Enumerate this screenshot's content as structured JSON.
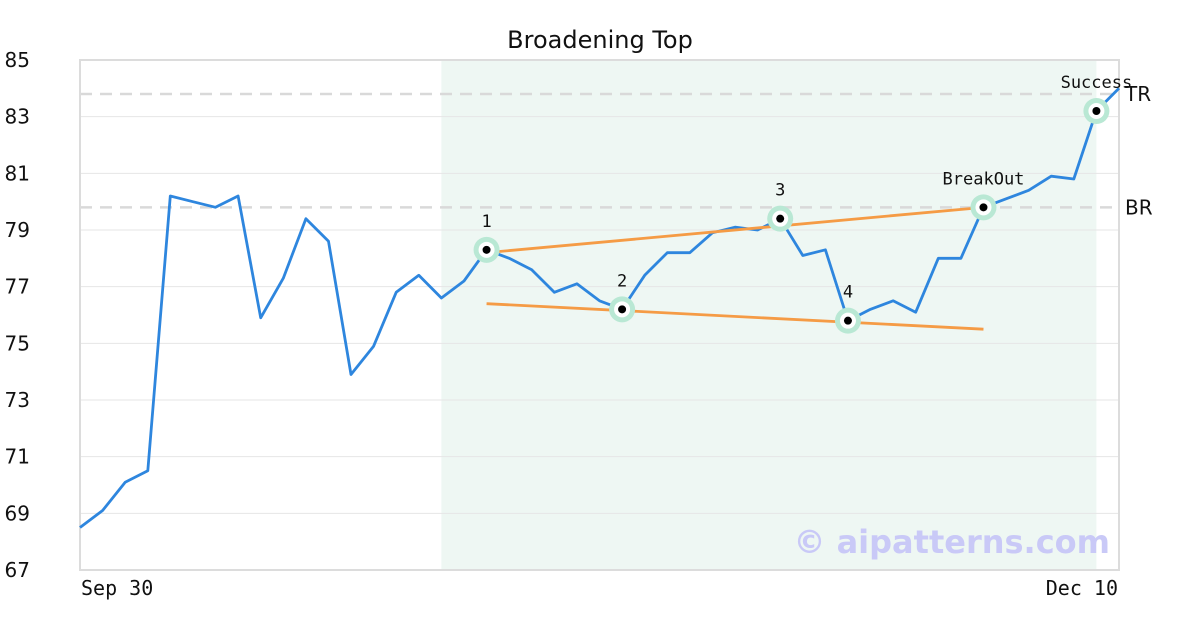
{
  "chart_data": {
    "type": "line",
    "title": "Broadening Top",
    "xlabel": "",
    "ylabel": "",
    "ylim": [
      67,
      85
    ],
    "yticks": [
      67,
      69,
      71,
      73,
      75,
      77,
      79,
      81,
      83,
      85
    ],
    "x_tick_labels": [
      "Sep 30",
      "Dec 10"
    ],
    "grid": "horizontal",
    "series": [
      {
        "color": "#2e86de",
        "values": [
          68.5,
          69.1,
          70.1,
          70.5,
          80.2,
          80.0,
          79.8,
          80.2,
          75.9,
          77.3,
          79.4,
          78.6,
          73.9,
          74.9,
          76.8,
          77.4,
          76.6,
          77.2,
          78.3,
          78.0,
          77.6,
          76.8,
          77.1,
          76.5,
          76.2,
          77.4,
          78.2,
          78.2,
          78.9,
          79.1,
          79.0,
          79.4,
          78.1,
          78.3,
          75.8,
          76.2,
          76.5,
          76.1,
          78.0,
          78.0,
          79.8,
          80.1,
          80.4,
          80.9,
          80.8,
          83.2,
          84.0
        ]
      }
    ],
    "shaded_region": {
      "x_start": 16,
      "x_end": 45,
      "color": "#eef7f3"
    },
    "reference_lines": [
      {
        "label": "TR",
        "y": 83.8
      },
      {
        "label": "BR",
        "y": 79.8
      }
    ],
    "trendlines": [
      {
        "x1": 18,
        "y1": 78.2,
        "x2": 40,
        "y2": 79.8,
        "color": "#f59b45"
      },
      {
        "x1": 18,
        "y1": 76.4,
        "x2": 40,
        "y2": 75.5,
        "color": "#f59b45"
      }
    ],
    "points": [
      {
        "label": "1",
        "x": 18,
        "y": 78.3
      },
      {
        "label": "2",
        "x": 24,
        "y": 76.2
      },
      {
        "label": "3",
        "x": 31,
        "y": 79.4
      },
      {
        "label": "4",
        "x": 34,
        "y": 75.8
      },
      {
        "label": "BreakOut",
        "x": 40,
        "y": 79.8
      },
      {
        "label": "Success",
        "x": 45,
        "y": 83.2
      }
    ],
    "watermark": "© aipatterns.com"
  }
}
